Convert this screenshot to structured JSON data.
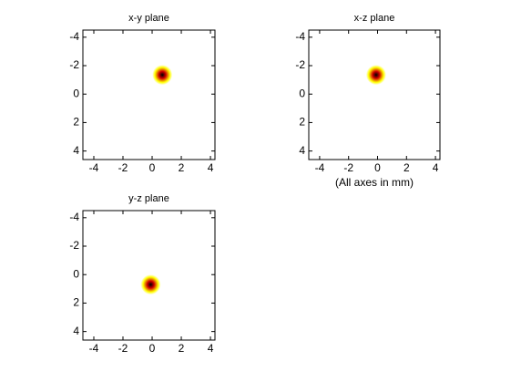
{
  "chart_data": [
    {
      "type": "scatter",
      "title": "x-y plane",
      "x": [
        0.7
      ],
      "y": [
        -1.35
      ],
      "xlim": [
        -4.75,
        4.31
      ],
      "ylim": [
        -4.5,
        4.6
      ],
      "y_reversed": true,
      "xticks": [
        -4,
        -2,
        0,
        2,
        4
      ],
      "yticks": [
        -4,
        -2,
        0,
        2,
        4
      ],
      "colors": [
        "#000000",
        "#d00000",
        "#ffff00"
      ]
    },
    {
      "type": "scatter",
      "title": "x-z plane",
      "xlabel": "(All axes in mm)",
      "x": [
        -0.1
      ],
      "y": [
        -1.35
      ],
      "xlim": [
        -4.75,
        4.31
      ],
      "ylim": [
        -4.5,
        4.6
      ],
      "y_reversed": true,
      "xticks": [
        -4,
        -2,
        0,
        2,
        4
      ],
      "yticks": [
        -4,
        -2,
        0,
        2,
        4
      ],
      "colors": [
        "#000000",
        "#d00000",
        "#ffff00"
      ]
    },
    {
      "type": "scatter",
      "title": "y-z plane",
      "x": [
        -0.1
      ],
      "y": [
        0.7
      ],
      "xlim": [
        -4.75,
        4.31
      ],
      "ylim": [
        -4.5,
        4.6
      ],
      "y_reversed": true,
      "xticks": [
        -4,
        -2,
        0,
        2,
        4
      ],
      "yticks": [
        -4,
        -2,
        0,
        2,
        4
      ],
      "colors": [
        "#000000",
        "#d00000",
        "#ffff00"
      ]
    }
  ]
}
